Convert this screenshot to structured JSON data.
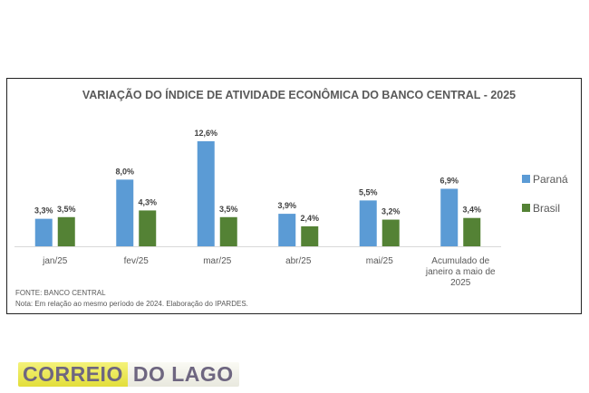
{
  "chart_data": {
    "type": "bar",
    "title": "VARIAÇÃO DO ÍNDICE DE ATIVIDADE ECONÔMICA DO BANCO CENTRAL - 2025",
    "categories": [
      [
        "jan/25"
      ],
      [
        "fev/25"
      ],
      [
        "mar/25"
      ],
      [
        "abr/25"
      ],
      [
        "mai/25"
      ],
      [
        "Acumulado de",
        "janeiro a maio de",
        "2025"
      ]
    ],
    "series": [
      {
        "name": "Paraná",
        "color": "#5b9bd5",
        "values": [
          3.3,
          8.0,
          12.6,
          3.9,
          5.5,
          6.9
        ],
        "labels": [
          "3,3%",
          "8,0%",
          "12,6%",
          "3,9%",
          "5,5%",
          "6,9%"
        ]
      },
      {
        "name": "Brasil",
        "color": "#548235",
        "values": [
          3.5,
          4.3,
          3.5,
          2.4,
          3.2,
          3.4
        ],
        "labels": [
          "3,5%",
          "4,3%",
          "3,5%",
          "2,4%",
          "3,2%",
          "3,4%"
        ]
      }
    ],
    "ylim": [
      0,
      12.6
    ],
    "grid": false,
    "legend_position": "right"
  },
  "notes": {
    "source": "FONTE: BANCO CENTRAL",
    "note": "Nota: Em relação ao mesmo período de 2024. Elaboração do IPARDES."
  },
  "logo": {
    "part1": "CORREIO",
    "part2": "DO LAGO"
  }
}
